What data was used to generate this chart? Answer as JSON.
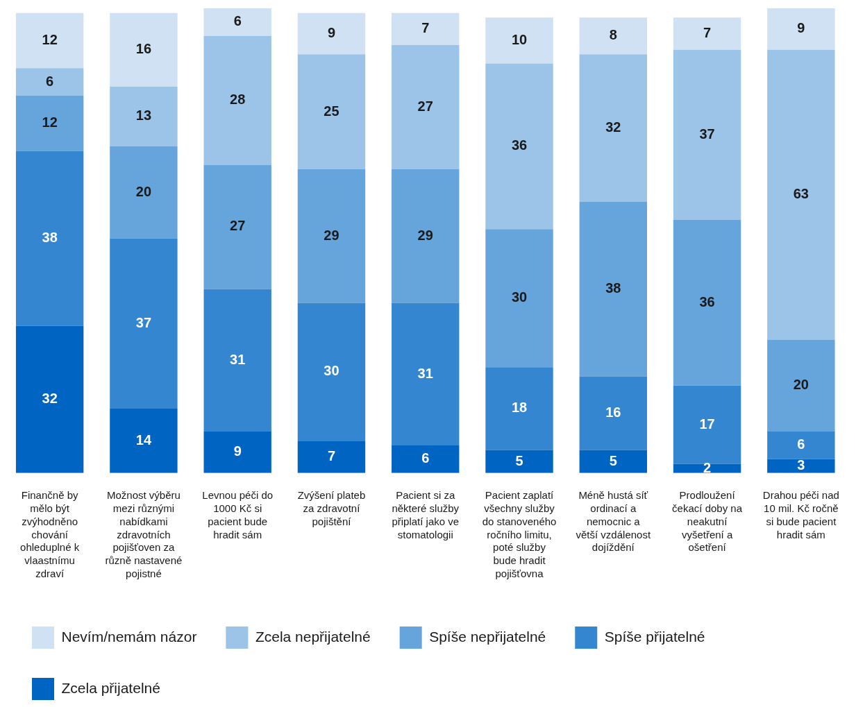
{
  "chart_data": {
    "type": "bar",
    "stacked": true,
    "data_labels": true,
    "legend": "bottom",
    "grid": false,
    "tick_labels": "x",
    "categories": [
      "Finančně by mělo být zvýhodněno chování ohleduplné k vlaastnímu zdraví",
      "Možnost výběru mezi různými nabídkami zdravotních pojišťoven za různě nastavené pojistné",
      "Levnou péči do 1000 Kč si pacient bude hradit sám",
      "Zvýšení plateb za zdravotní pojištění",
      "Pacient si za některé služby připlatí jako ve stomatologii",
      "Pacient zaplatí všechny služby do stanoveného ročního limitu, poté služby bude hradit pojišťovna",
      "Méně hustá síť ordinací a nemocnic a větší vzdálenost dojíždění",
      "Prodloužení čekací doby na neakutní vyšetření a ošetření",
      "Drahou péči nad 10 mil. Kč ročně si bude pacient hradit sám"
    ],
    "series": [
      {
        "name": "Zcela přijatelné",
        "color": "#0064c2",
        "values": [
          32,
          14,
          9,
          7,
          6,
          5,
          5,
          2,
          3
        ]
      },
      {
        "name": "Spíše přijatelné",
        "color": "#3586d0",
        "values": [
          38,
          37,
          31,
          30,
          31,
          18,
          16,
          17,
          6
        ]
      },
      {
        "name": "Spíše nepřijatelné",
        "color": "#66a4dc",
        "values": [
          12,
          20,
          27,
          29,
          29,
          30,
          38,
          36,
          20
        ]
      },
      {
        "name": "Zcela nepřijatelné",
        "color": "#9cc3e8",
        "values": [
          6,
          13,
          28,
          25,
          27,
          36,
          32,
          37,
          63
        ]
      },
      {
        "name": "Nevím/nemám názor",
        "color": "#cfe1f3",
        "values": [
          12,
          16,
          6,
          9,
          7,
          10,
          8,
          7,
          9
        ]
      }
    ]
  }
}
